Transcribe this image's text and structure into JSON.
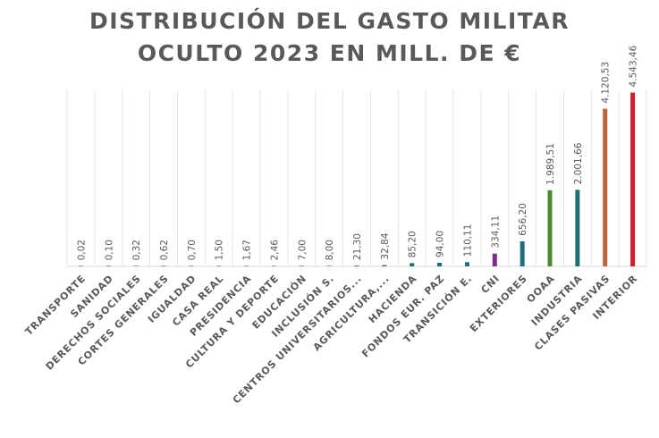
{
  "chart_data": {
    "type": "bar",
    "title_lines": [
      "DISTRIBUCIÓN DEL GASTO MILITAR",
      "OCULTO 2023 EN MILL. DE €"
    ],
    "xlabel": "",
    "ylabel": "",
    "ylim": [
      0,
      5000
    ],
    "grid": "vertical-separators",
    "legend": "none",
    "categories": [
      "TRANSPORTE",
      "SANIDAD",
      "DERECHOS SOCIALES",
      "CORTES GENERALES",
      "IGUALDAD",
      "CASA REAL",
      "PRESIDENCIA",
      "CULTURA Y DEPORTE",
      "EDUCACIÓN",
      "INCLUSIÓN S.",
      "CENTROS UNIVERSITARIOS...",
      "AGRICULTURA,...",
      "HACIENDA",
      "FONDOS EUR. PAZ",
      "TRANSICIÓN E.",
      "CNI",
      "EXTERIORES",
      "OOAA",
      "INDUSTRIA",
      "CLASES PASIVAS",
      "INTERIOR"
    ],
    "values": [
      0.02,
      0.1,
      0.32,
      0.62,
      0.7,
      1.5,
      1.67,
      2.46,
      7.0,
      8.0,
      21.3,
      32.84,
      85.2,
      94.0,
      110.11,
      334.11,
      656.2,
      1989.51,
      2001.66,
      4120.53,
      4543.46
    ],
    "value_labels": [
      "0,02",
      "0,10",
      "0,32",
      "0,62",
      "0,70",
      "1,50",
      "1,67",
      "2,46",
      "7,00",
      "8,00",
      "21,30",
      "32,84",
      "85,20",
      "94,00",
      "110,11",
      "334,11",
      "656,20",
      "1.989,51",
      "2.001,66",
      "4.120,53",
      "4.543,46"
    ],
    "colors": [
      "#1f6f78",
      "#1f6f78",
      "#1f6f78",
      "#1f6f78",
      "#1f6f78",
      "#1f6f78",
      "#1f6f78",
      "#1f6f78",
      "#1f6f78",
      "#1f6f78",
      "#1f6f78",
      "#1f6f78",
      "#1f6f78",
      "#1f6f78",
      "#1f6f78",
      "#7b2d8e",
      "#1f6f78",
      "#4a8a2e",
      "#1f6f78",
      "#c0623a",
      "#d0202e"
    ]
  }
}
